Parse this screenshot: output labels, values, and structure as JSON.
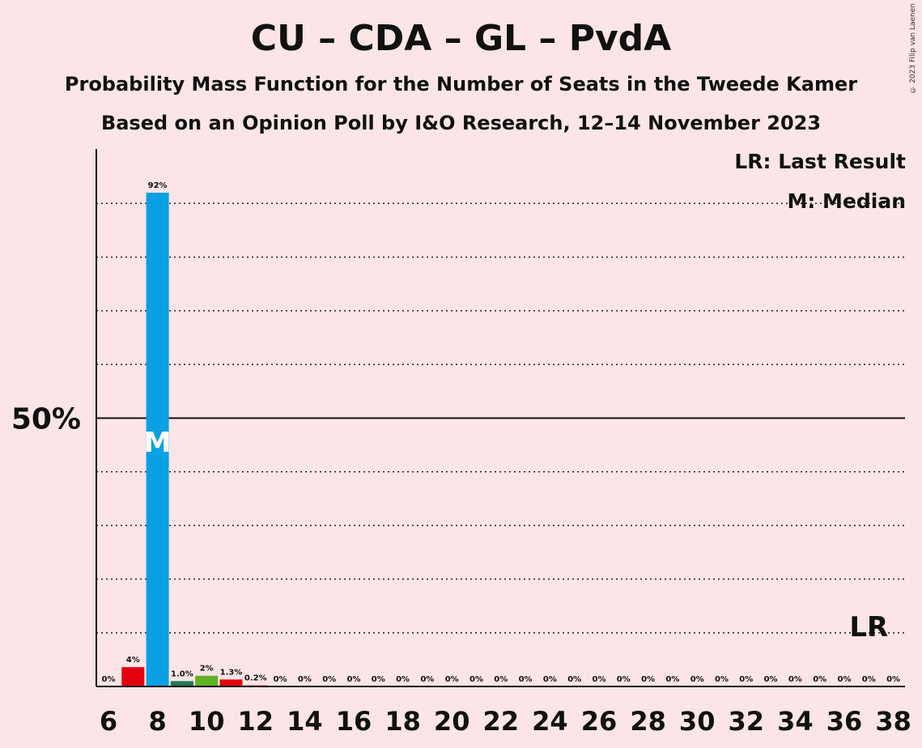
{
  "header": {
    "title": "CU – CDA – GL – PvdA",
    "subtitle": "Probability Mass Function for the Number of Seats in the Tweede Kamer",
    "subtitle2": "Based on an Opinion Poll by I&O Research, 12–14 November 2023",
    "copyright": "© 2023 Filip van Laenen"
  },
  "legend": {
    "last_result": "LR: Last Result",
    "median": "M: Median"
  },
  "chart_data": {
    "type": "bar",
    "x": [
      6,
      7,
      8,
      9,
      10,
      11,
      12,
      13,
      14,
      15,
      16,
      17,
      18,
      19,
      20,
      21,
      22,
      23,
      24,
      25,
      26,
      27,
      28,
      29,
      30,
      31,
      32,
      33,
      34,
      35,
      36,
      37,
      38
    ],
    "values": [
      0,
      3.6,
      92,
      1.0,
      2,
      1.3,
      0.2,
      0,
      0,
      0,
      0,
      0,
      0,
      0,
      0,
      0,
      0,
      0,
      0,
      0,
      0,
      0,
      0,
      0,
      0,
      0,
      0,
      0,
      0,
      0,
      0,
      0,
      0
    ],
    "labels": [
      "0%",
      "4%",
      "92%",
      "1.0%",
      "2%",
      "1.3%",
      "0.2%",
      "0%",
      "0%",
      "0%",
      "0%",
      "0%",
      "0%",
      "0%",
      "0%",
      "0%",
      "0%",
      "0%",
      "0%",
      "0%",
      "0%",
      "0%",
      "0%",
      "0%",
      "0%",
      "0%",
      "0%",
      "0%",
      "0%",
      "0%",
      "0%",
      "0%",
      "0%"
    ],
    "colors": [
      "#e3000f",
      "#e3000f",
      "#0aa0e4",
      "#1e7a52",
      "#61b325",
      "#e3000f",
      "#e3000f",
      "#0aa0e4",
      "#1e7a52",
      "#61b325",
      "#e3000f",
      "#e3000f",
      "#0aa0e4",
      "#1e7a52",
      "#61b325",
      "#e3000f",
      "#e3000f",
      "#0aa0e4",
      "#1e7a52",
      "#61b325",
      "#e3000f",
      "#e3000f",
      "#0aa0e4",
      "#1e7a52",
      "#61b325",
      "#e3000f",
      "#e3000f",
      "#0aa0e4",
      "#1e7a52",
      "#61b325",
      "#e3000f",
      "#e3000f",
      "#0aa0e4"
    ],
    "xticks": [
      "6",
      "8",
      "10",
      "12",
      "14",
      "16",
      "18",
      "20",
      "22",
      "24",
      "26",
      "28",
      "30",
      "32",
      "34",
      "36",
      "38"
    ],
    "ytick_label": "50%",
    "ylim": [
      0,
      100
    ],
    "gridlines": [
      10,
      20,
      30,
      40,
      60,
      70,
      80,
      90
    ],
    "median_seat": 8,
    "median_marker": "M",
    "last_result_seat": 37,
    "last_result_marker": "LR"
  }
}
